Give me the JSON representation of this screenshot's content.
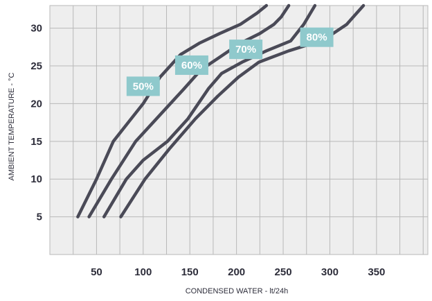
{
  "chart_data": {
    "type": "line",
    "title": "",
    "xlabel": "CONDENSED WATER - lt/24h",
    "ylabel": "AMBIENT TEMPERATURE - °C",
    "xlim": [
      0,
      405
    ],
    "ylim": [
      0,
      33
    ],
    "x_ticks": [
      50,
      100,
      150,
      200,
      250,
      300,
      350
    ],
    "y_ticks": [
      5,
      10,
      15,
      20,
      25,
      30
    ],
    "x_grid_step": 25,
    "y_grid_step": 5,
    "grid": true,
    "legend": "none",
    "series": [
      {
        "name": "50%",
        "x": [
          30,
          50,
          68,
          84,
          100,
          118,
          140,
          160,
          182,
          204,
          222,
          232
        ],
        "y": [
          5,
          10,
          15,
          17.5,
          20,
          23.5,
          26.5,
          28,
          29.3,
          30.5,
          32,
          33
        ]
      },
      {
        "name": "60%",
        "x": [
          42,
          66,
          92,
          118,
          144,
          162,
          180,
          204,
          225,
          240,
          248,
          256
        ],
        "y": [
          5,
          10,
          15,
          18.5,
          22,
          24.5,
          26,
          28,
          29.3,
          30.5,
          31.5,
          33
        ]
      },
      {
        "name": "70%",
        "x": [
          58,
          82,
          100,
          126,
          148,
          170,
          184,
          206,
          232,
          258,
          272,
          284
        ],
        "y": [
          5,
          10,
          12.5,
          15,
          18,
          22,
          24,
          25.5,
          27,
          28.3,
          30.5,
          33
        ]
      },
      {
        "name": "80%",
        "x": [
          76,
          102,
          128,
          156,
          180,
          202,
          224,
          256,
          282,
          300,
          318,
          336
        ],
        "y": [
          5,
          10,
          14,
          18,
          21,
          23.5,
          25.5,
          27,
          28,
          29,
          30.5,
          33
        ]
      }
    ],
    "series_label_positions": [
      {
        "series": "50%",
        "x": 100,
        "y": 22.3
      },
      {
        "series": "60%",
        "x": 152,
        "y": 25.1
      },
      {
        "series": "70%",
        "x": 210,
        "y": 27.2
      },
      {
        "series": "80%",
        "x": 286,
        "y": 28.8
      }
    ],
    "colors": {
      "line": "#4a4a57",
      "plot_background": "#eeeeee",
      "grid": "#b8b8b8",
      "label_box": "#8fc9cc",
      "label_text": "#ffffff",
      "text": "#2d2d3a"
    }
  }
}
